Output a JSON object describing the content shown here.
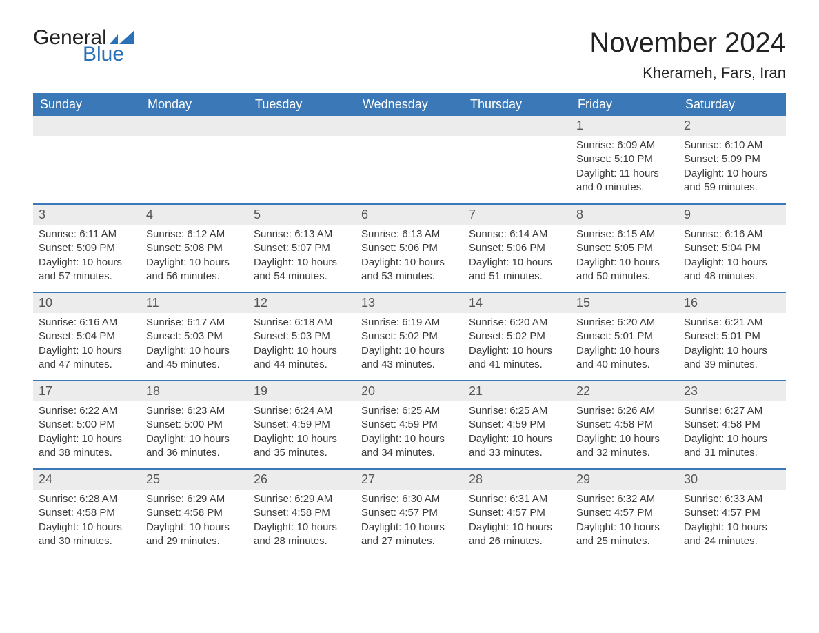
{
  "logo": {
    "text_general": "General",
    "text_blue": "Blue",
    "flag_color": "#2b71b8"
  },
  "title": "November 2024",
  "location": "Kherameh, Fars, Iran",
  "colors": {
    "header_bg": "#3a78b7",
    "header_text": "#ffffff",
    "daynum_bg": "#ececec",
    "row_border": "#3a78b7",
    "body_text": "#3a3a3a",
    "page_bg": "#ffffff"
  },
  "typography": {
    "title_fontsize": 40,
    "location_fontsize": 22,
    "header_fontsize": 18,
    "daynum_fontsize": 18,
    "body_fontsize": 15
  },
  "layout": {
    "columns": 7,
    "rows": 5,
    "first_day_column_index": 5
  },
  "weekdays": [
    "Sunday",
    "Monday",
    "Tuesday",
    "Wednesday",
    "Thursday",
    "Friday",
    "Saturday"
  ],
  "labels": {
    "sunrise": "Sunrise",
    "sunset": "Sunset",
    "daylight": "Daylight"
  },
  "days": [
    {
      "n": 1,
      "sunrise": "6:09 AM",
      "sunset": "5:10 PM",
      "daylight": "11 hours and 0 minutes."
    },
    {
      "n": 2,
      "sunrise": "6:10 AM",
      "sunset": "5:09 PM",
      "daylight": "10 hours and 59 minutes."
    },
    {
      "n": 3,
      "sunrise": "6:11 AM",
      "sunset": "5:09 PM",
      "daylight": "10 hours and 57 minutes."
    },
    {
      "n": 4,
      "sunrise": "6:12 AM",
      "sunset": "5:08 PM",
      "daylight": "10 hours and 56 minutes."
    },
    {
      "n": 5,
      "sunrise": "6:13 AM",
      "sunset": "5:07 PM",
      "daylight": "10 hours and 54 minutes."
    },
    {
      "n": 6,
      "sunrise": "6:13 AM",
      "sunset": "5:06 PM",
      "daylight": "10 hours and 53 minutes."
    },
    {
      "n": 7,
      "sunrise": "6:14 AM",
      "sunset": "5:06 PM",
      "daylight": "10 hours and 51 minutes."
    },
    {
      "n": 8,
      "sunrise": "6:15 AM",
      "sunset": "5:05 PM",
      "daylight": "10 hours and 50 minutes."
    },
    {
      "n": 9,
      "sunrise": "6:16 AM",
      "sunset": "5:04 PM",
      "daylight": "10 hours and 48 minutes."
    },
    {
      "n": 10,
      "sunrise": "6:16 AM",
      "sunset": "5:04 PM",
      "daylight": "10 hours and 47 minutes."
    },
    {
      "n": 11,
      "sunrise": "6:17 AM",
      "sunset": "5:03 PM",
      "daylight": "10 hours and 45 minutes."
    },
    {
      "n": 12,
      "sunrise": "6:18 AM",
      "sunset": "5:03 PM",
      "daylight": "10 hours and 44 minutes."
    },
    {
      "n": 13,
      "sunrise": "6:19 AM",
      "sunset": "5:02 PM",
      "daylight": "10 hours and 43 minutes."
    },
    {
      "n": 14,
      "sunrise": "6:20 AM",
      "sunset": "5:02 PM",
      "daylight": "10 hours and 41 minutes."
    },
    {
      "n": 15,
      "sunrise": "6:20 AM",
      "sunset": "5:01 PM",
      "daylight": "10 hours and 40 minutes."
    },
    {
      "n": 16,
      "sunrise": "6:21 AM",
      "sunset": "5:01 PM",
      "daylight": "10 hours and 39 minutes."
    },
    {
      "n": 17,
      "sunrise": "6:22 AM",
      "sunset": "5:00 PM",
      "daylight": "10 hours and 38 minutes."
    },
    {
      "n": 18,
      "sunrise": "6:23 AM",
      "sunset": "5:00 PM",
      "daylight": "10 hours and 36 minutes."
    },
    {
      "n": 19,
      "sunrise": "6:24 AM",
      "sunset": "4:59 PM",
      "daylight": "10 hours and 35 minutes."
    },
    {
      "n": 20,
      "sunrise": "6:25 AM",
      "sunset": "4:59 PM",
      "daylight": "10 hours and 34 minutes."
    },
    {
      "n": 21,
      "sunrise": "6:25 AM",
      "sunset": "4:59 PM",
      "daylight": "10 hours and 33 minutes."
    },
    {
      "n": 22,
      "sunrise": "6:26 AM",
      "sunset": "4:58 PM",
      "daylight": "10 hours and 32 minutes."
    },
    {
      "n": 23,
      "sunrise": "6:27 AM",
      "sunset": "4:58 PM",
      "daylight": "10 hours and 31 minutes."
    },
    {
      "n": 24,
      "sunrise": "6:28 AM",
      "sunset": "4:58 PM",
      "daylight": "10 hours and 30 minutes."
    },
    {
      "n": 25,
      "sunrise": "6:29 AM",
      "sunset": "4:58 PM",
      "daylight": "10 hours and 29 minutes."
    },
    {
      "n": 26,
      "sunrise": "6:29 AM",
      "sunset": "4:58 PM",
      "daylight": "10 hours and 28 minutes."
    },
    {
      "n": 27,
      "sunrise": "6:30 AM",
      "sunset": "4:57 PM",
      "daylight": "10 hours and 27 minutes."
    },
    {
      "n": 28,
      "sunrise": "6:31 AM",
      "sunset": "4:57 PM",
      "daylight": "10 hours and 26 minutes."
    },
    {
      "n": 29,
      "sunrise": "6:32 AM",
      "sunset": "4:57 PM",
      "daylight": "10 hours and 25 minutes."
    },
    {
      "n": 30,
      "sunrise": "6:33 AM",
      "sunset": "4:57 PM",
      "daylight": "10 hours and 24 minutes."
    }
  ]
}
